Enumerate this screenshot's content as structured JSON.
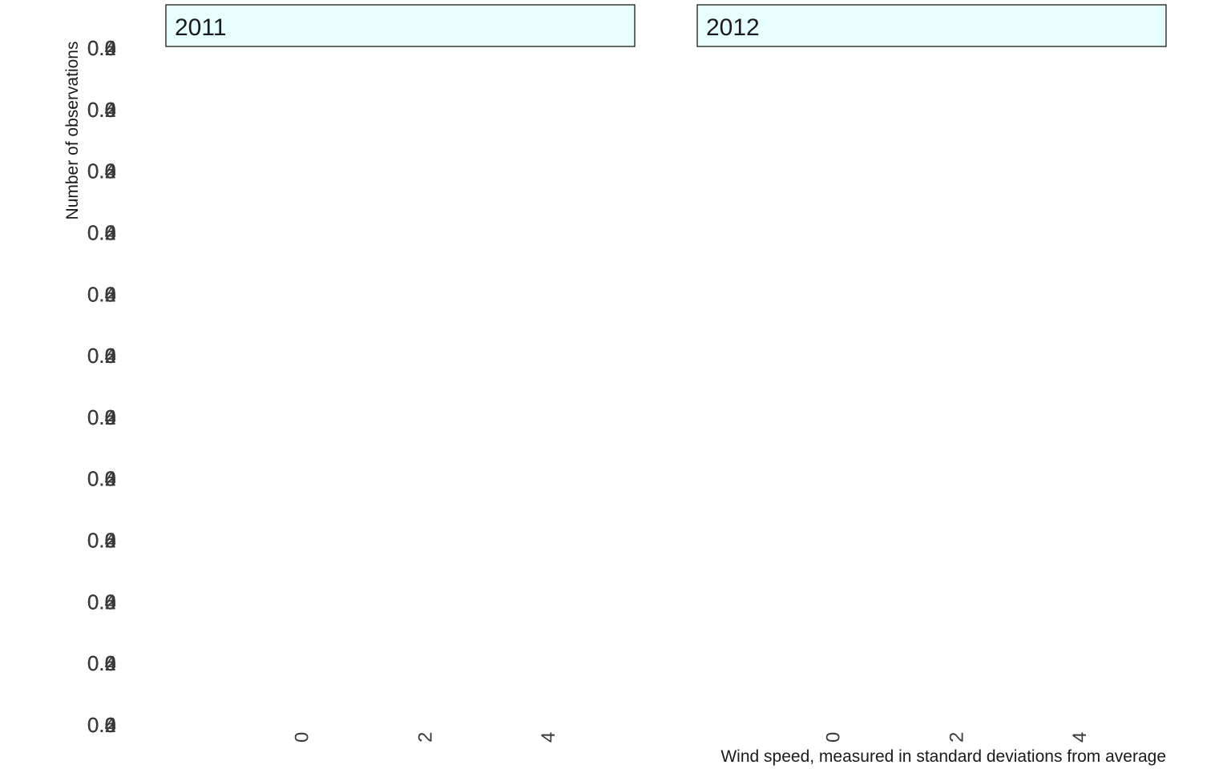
{
  "chart_data": {
    "type": "bar",
    "xlabel": "Wind speed, measured in standard deviations from average",
    "ylabel": "Number of observations",
    "facets": [
      {
        "label": "2011",
        "x_ticks": [
          "0",
          "2",
          "4"
        ],
        "series": []
      },
      {
        "label": "2012",
        "x_ticks": [
          "0",
          "2",
          "4"
        ],
        "series": []
      }
    ],
    "x_range": [
      -2.2,
      5.4
    ],
    "y_ticks": [
      "0.0",
      "0.0",
      "0.0",
      "0.0",
      "0.0",
      "0.0",
      "0.0",
      "0.0",
      "0.0",
      "0.0",
      "0.0",
      "0.0"
    ],
    "y_tick_overprint": [
      "0.2",
      "0.4",
      "0.6"
    ],
    "grid": false,
    "colors": {
      "strip_fill": "#e8ffff",
      "strip_border": "#1a1a1a",
      "text": "#3a3a3a",
      "title_text": "#1a1a1a"
    }
  }
}
